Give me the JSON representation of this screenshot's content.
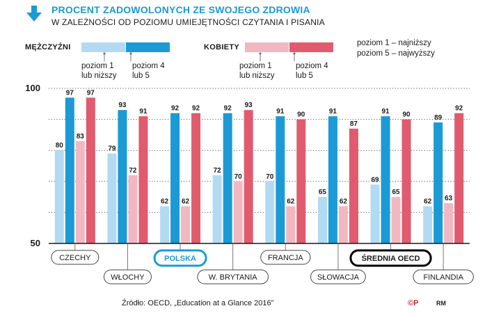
{
  "title": "PROCENT ZADOWOLONYCH ZE SWOJEGO ZDROWIA",
  "subtitle": "W ZALEŻNOŚCI OD POZIOMU UMIEJĘTNOŚCI CZYTANIA I PISANIA",
  "legend": {
    "men_label": "MĘŻCZYŹNI",
    "women_label": "KOBIETY",
    "low_level": [
      "poziom 1",
      "lub niższy"
    ],
    "high_level": [
      "poziom 4",
      "lub 5"
    ],
    "scale_note": [
      "poziom 1 – najniższy",
      "poziom 5 – najwyższy"
    ]
  },
  "colors": {
    "men_low": "#b3daf3",
    "men_high": "#1b9ad6",
    "women_low": "#f2b8c1",
    "women_high": "#e05b6e",
    "highlight_polska": "#1b9ad6",
    "highlight_oecd": "#000000"
  },
  "chart_data": {
    "type": "bar",
    "categories": [
      "CZECHY",
      "WŁOCHY",
      "POLSKA",
      "W. BRYTANIA",
      "FRANCJA",
      "SŁOWACJA",
      "ŚREDNIA OECD",
      "FINLANDIA"
    ],
    "series": [
      {
        "name": "MĘŻCZYŹNI poziom 1 lub niższy",
        "values": [
          80,
          79,
          62,
          72,
          70,
          65,
          69,
          62
        ]
      },
      {
        "name": "MĘŻCZYŹNI poziom 4 lub 5",
        "values": [
          97,
          93,
          92,
          92,
          91,
          91,
          91,
          89
        ]
      },
      {
        "name": "KOBIETY poziom 1 lub niższy",
        "values": [
          83,
          72,
          62,
          70,
          62,
          62,
          65,
          63
        ]
      },
      {
        "name": "KOBIETY poziom 4 lub 5",
        "values": [
          97,
          91,
          92,
          93,
          90,
          87,
          90,
          92
        ]
      }
    ],
    "ylim": [
      50,
      100
    ],
    "yticks": [
      50,
      100
    ],
    "grid": true,
    "highlighted_categories": [
      "POLSKA",
      "ŚREDNIA OECD"
    ]
  },
  "footer": {
    "source": "Źródło: OECD, „Education at a Glance 2016”",
    "cp": "©P",
    "author": "RM"
  }
}
